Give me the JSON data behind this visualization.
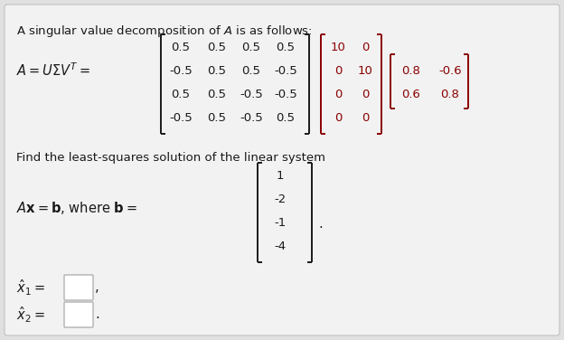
{
  "bg_color": "#e0e0e0",
  "card_color": "#f2f2f2",
  "font_color": "#1a1a1a",
  "red_color": "#8b0000",
  "figsize": [
    6.24,
    3.76
  ],
  "dpi": 100,
  "title": "A singular value decomposition of $\\mathit{A}$ is as follows:",
  "find_text": "Find the least-squares solution of the linear system",
  "ax_eq": "$\\mathit{A}\\mathbf{x} = \\mathbf{b}$, where $\\mathbf{b} =$",
  "u_matrix": [
    [
      " 0.5",
      " 0.5",
      " 0.5",
      " 0.5"
    ],
    [
      "-0.5",
      " 0.5",
      " 0.5",
      "-0.5"
    ],
    [
      " 0.5",
      " 0.5",
      "-0.5",
      "-0.5"
    ],
    [
      "-0.5",
      " 0.5",
      "-0.5",
      " 0.5"
    ]
  ],
  "sigma_matrix": [
    [
      "10",
      "0"
    ],
    [
      "0",
      "10"
    ],
    [
      "0",
      "0"
    ],
    [
      "0",
      "0"
    ]
  ],
  "vt_matrix": [
    [
      "0.8",
      "-0.6"
    ],
    [
      "0.6",
      "0.8"
    ]
  ],
  "b_vector": [
    "1",
    "-2",
    "-1",
    "-4"
  ],
  "xhat1_label": "$\\hat{x}_1 =$",
  "xhat2_label": "$\\hat{x}_2 =$"
}
